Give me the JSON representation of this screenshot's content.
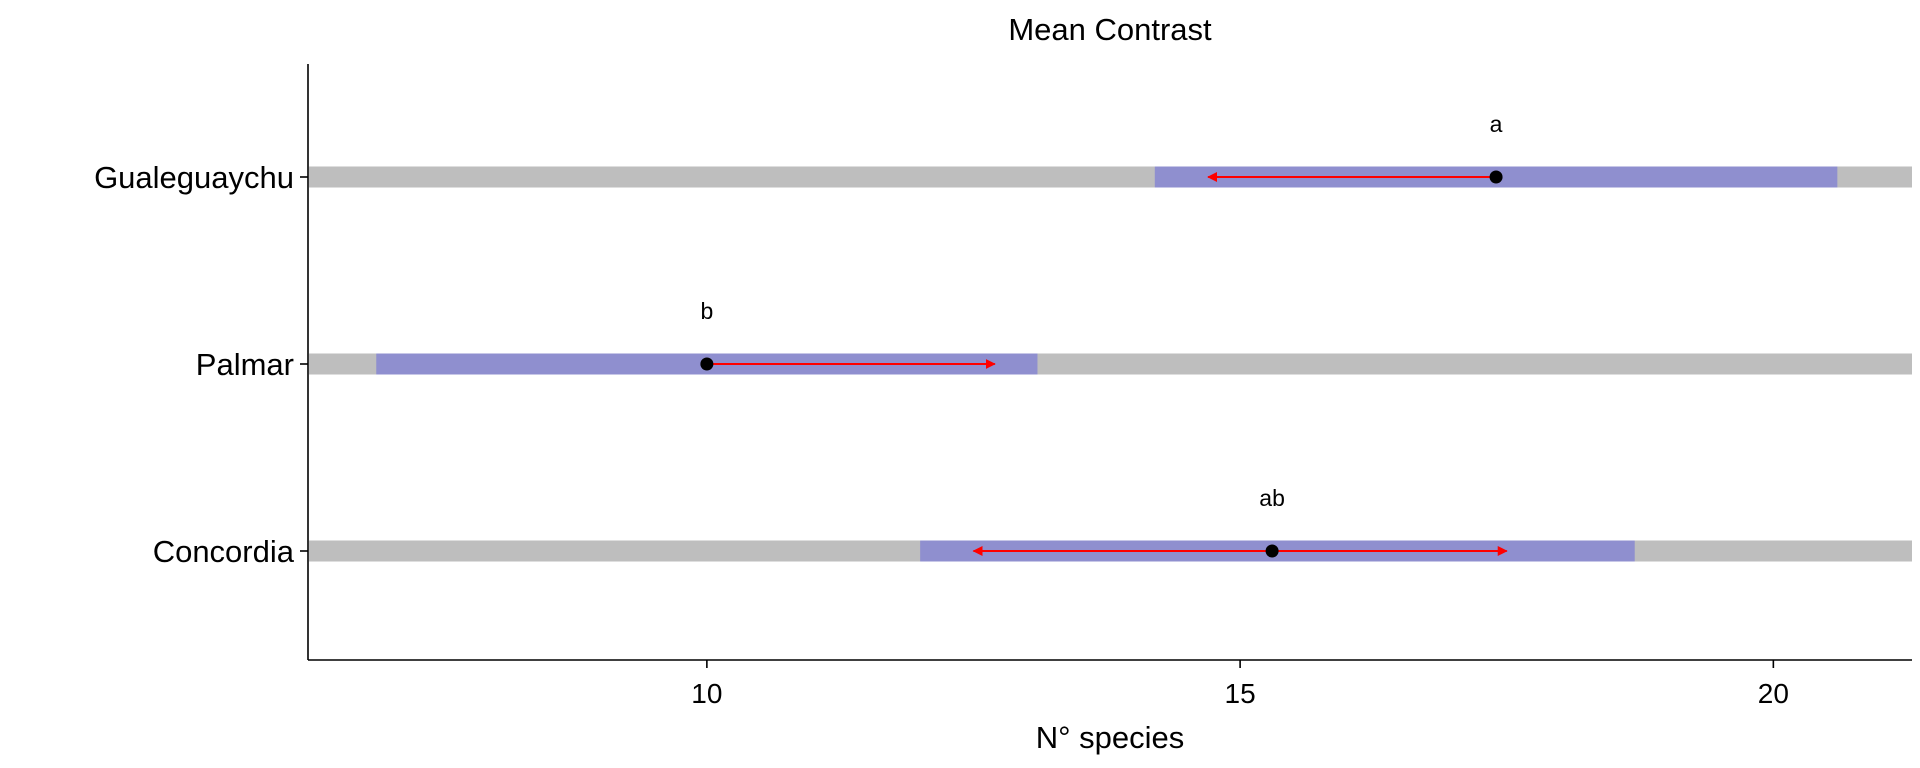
{
  "chart_data": {
    "type": "emmeans-interval",
    "title": "Mean Contrast",
    "xlabel": "N° species",
    "ylabel": "",
    "xlim": [
      6.26,
      21.3
    ],
    "x_ticks": [
      10,
      15,
      20
    ],
    "grid": false,
    "colors": {
      "range_bar": "#bebebe",
      "confidence_interval": "#8f8fcf",
      "comparison_arrow": "#ff0000",
      "point": "#000000"
    },
    "categories": [
      "Concordia",
      "Palmar",
      "Gualeguaychu"
    ],
    "series": [
      {
        "category": "Gualeguaychu",
        "mean": 17.4,
        "ci_low": 14.2,
        "ci_high": 20.6,
        "arrow_low": 14.7,
        "arrow_high": null,
        "group_letter": "a"
      },
      {
        "category": "Palmar",
        "mean": 10.0,
        "ci_low": 6.9,
        "ci_high": 13.1,
        "arrow_low": null,
        "arrow_high": 12.7,
        "group_letter": "b"
      },
      {
        "category": "Concordia",
        "mean": 15.3,
        "ci_low": 12.0,
        "ci_high": 18.7,
        "arrow_low": 12.5,
        "arrow_high": 17.5,
        "group_letter": "ab"
      }
    ]
  }
}
